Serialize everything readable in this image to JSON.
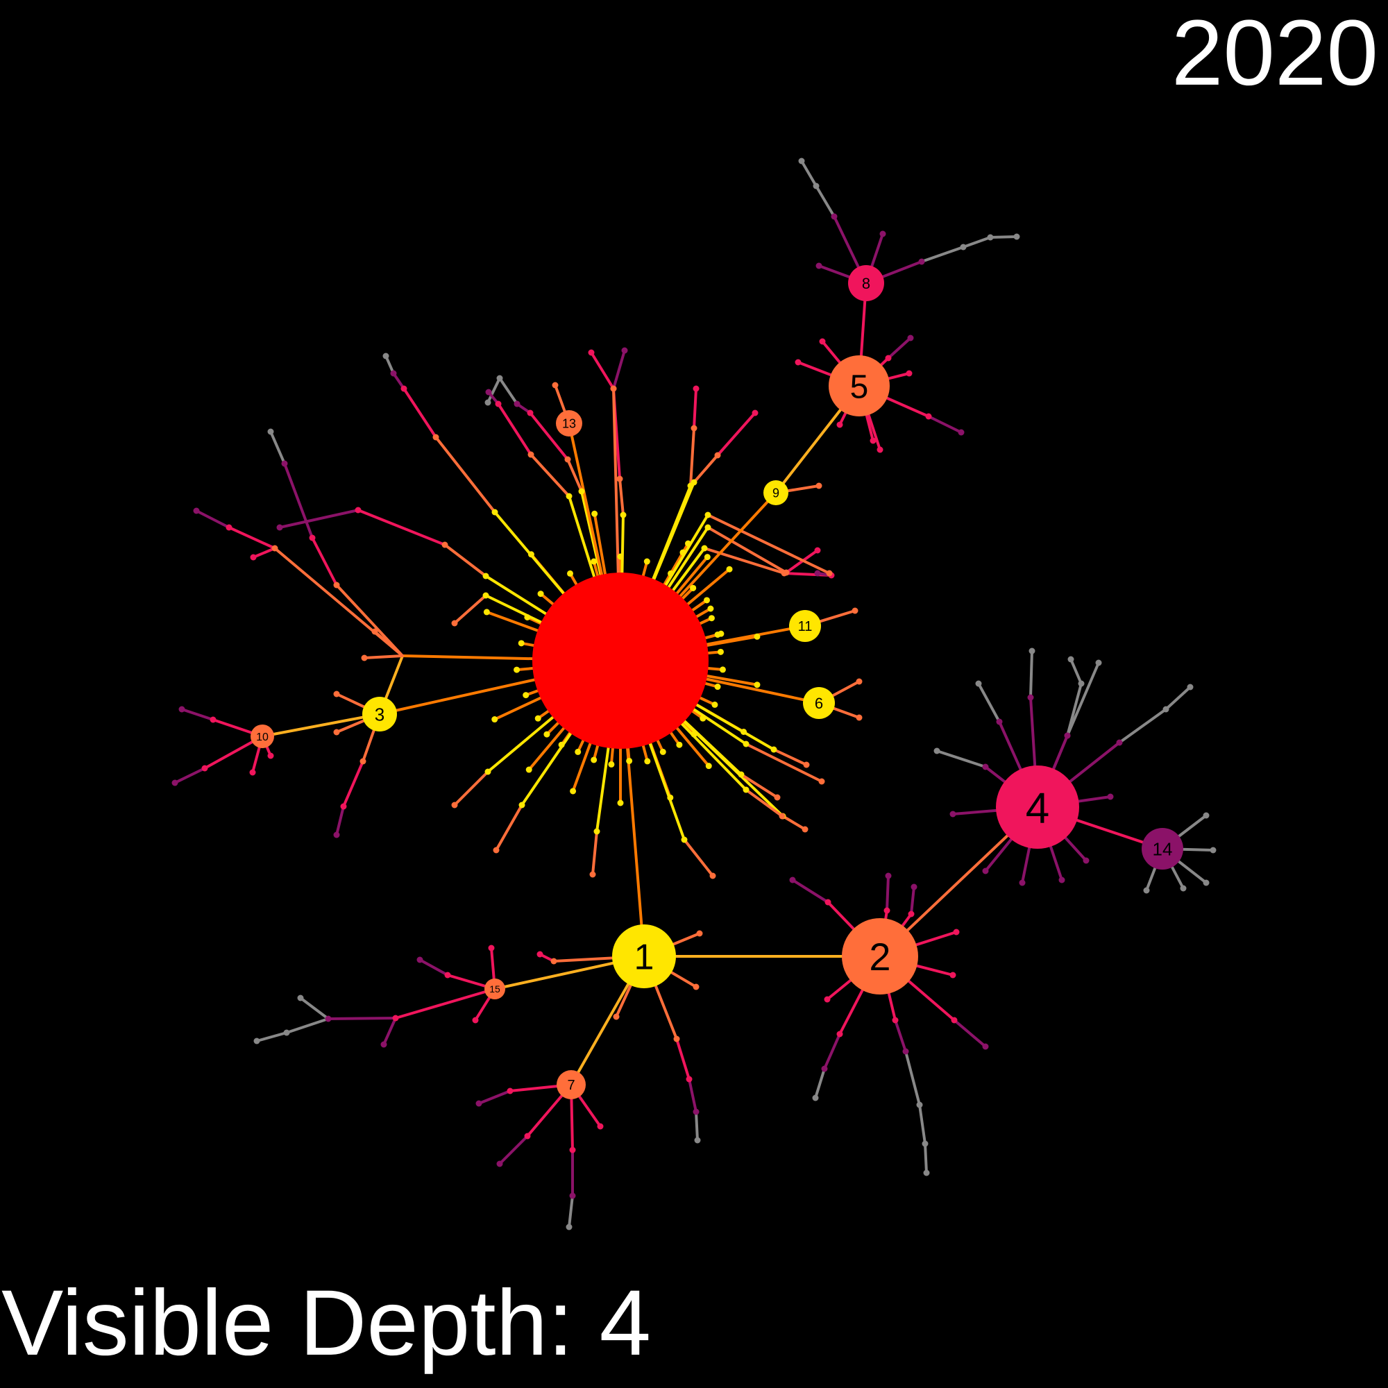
{
  "header": {
    "year": "2020"
  },
  "footer": {
    "depth_label": "Visible Depth: 4"
  },
  "colors": {
    "background": "#000000",
    "root": "#ff0000",
    "depth1": "#ffe600",
    "depth2": "#ff6e3a",
    "depth3": "#f0155c",
    "depth4": "#8b1268",
    "depth5": "#888888"
  },
  "hubs": [
    {
      "label": "1"
    },
    {
      "label": "2"
    },
    {
      "label": "3"
    },
    {
      "label": "4"
    },
    {
      "label": "5"
    },
    {
      "label": "6"
    },
    {
      "label": "7"
    },
    {
      "label": "8"
    },
    {
      "label": "9"
    },
    {
      "label": "10"
    },
    {
      "label": "11"
    },
    {
      "label": "13"
    },
    {
      "label": "14"
    },
    {
      "label": "15"
    }
  ]
}
